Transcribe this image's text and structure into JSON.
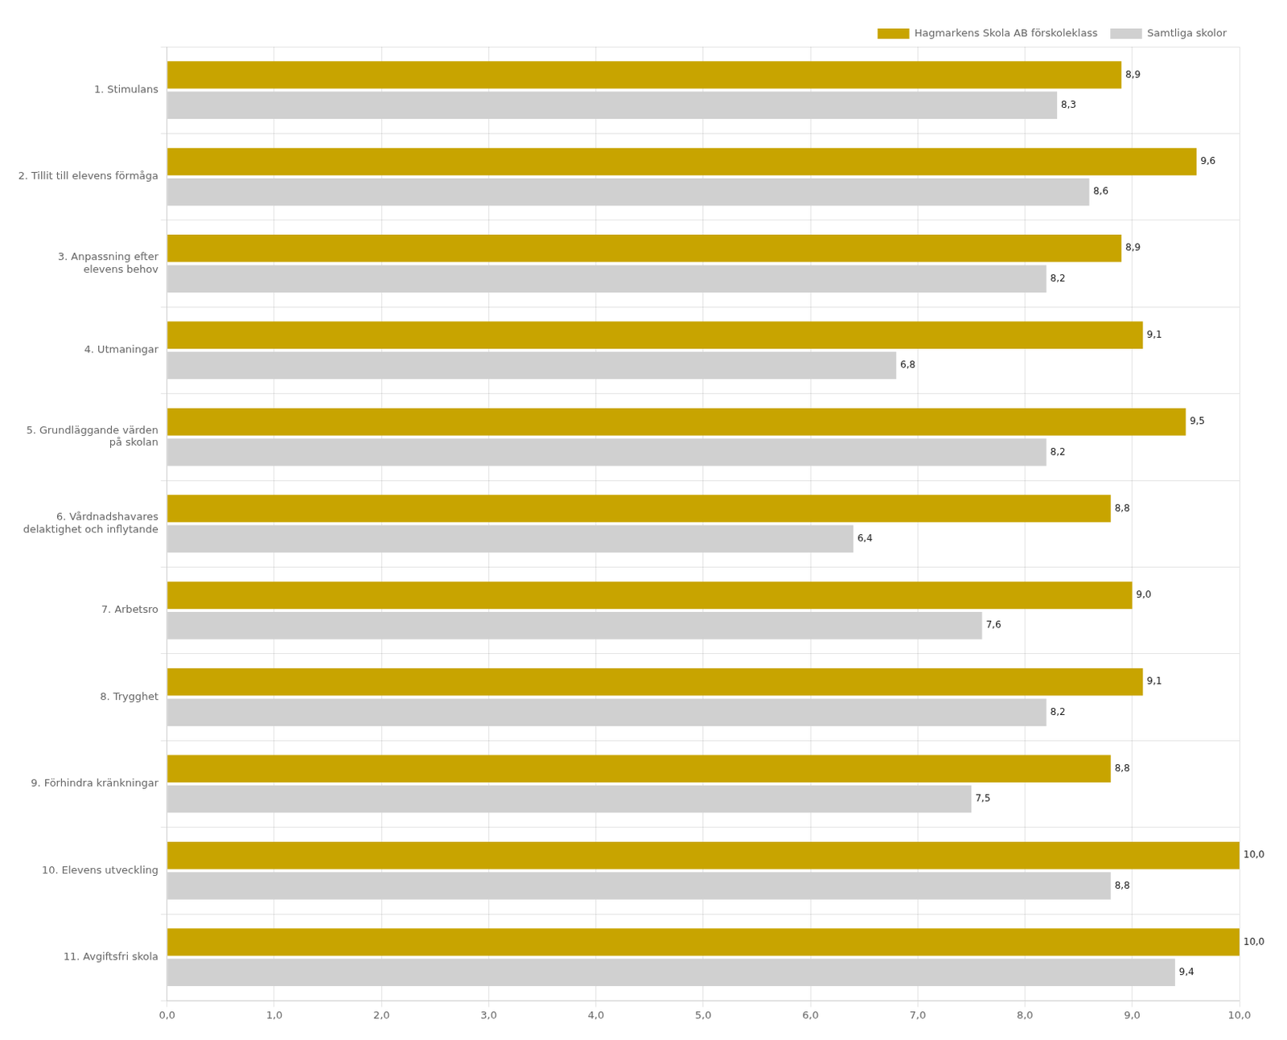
{
  "chart_data": {
    "type": "bar",
    "orientation": "horizontal",
    "categories": [
      "1. Stimulans",
      "2. Tillit till elevens förmåga",
      "3. Anpassning efter\nelevens behov",
      "4. Utmaningar",
      "5. Grundläggande värden\npå skolan",
      "6. Vårdnadshavares\ndelaktighet och inflytande",
      "7. Arbetsro",
      "8. Trygghet",
      "9. Förhindra kränkningar",
      "10. Elevens utveckling",
      "11. Avgiftsfri skola"
    ],
    "series": [
      {
        "name": "Hagmarkens Skola AB förskoleklass",
        "color": "#C8A400",
        "values": [
          8.9,
          9.6,
          8.9,
          9.1,
          9.5,
          8.8,
          9.0,
          9.1,
          8.8,
          10.0,
          10.0
        ],
        "value_labels": [
          "8,9",
          "9,6",
          "8,9",
          "9,1",
          "9,5",
          "8,8",
          "9,0",
          "9,1",
          "8,8",
          "10,0",
          "10,0"
        ]
      },
      {
        "name": "Samtliga skolor",
        "color": "#D0D0D0",
        "values": [
          8.3,
          8.6,
          8.2,
          6.8,
          8.2,
          6.4,
          7.6,
          8.2,
          7.5,
          8.8,
          9.4
        ],
        "value_labels": [
          "8,3",
          "8,6",
          "8,2",
          "6,8",
          "8,2",
          "6,4",
          "7,6",
          "8,2",
          "7,5",
          "8,8",
          "9,4"
        ]
      }
    ],
    "xlim": [
      0,
      10
    ],
    "xticks": [
      {
        "value": 0,
        "label": "0,0"
      },
      {
        "value": 1,
        "label": "1,0"
      },
      {
        "value": 2,
        "label": "2,0"
      },
      {
        "value": 3,
        "label": "3,0"
      },
      {
        "value": 4,
        "label": "4,0"
      },
      {
        "value": 5,
        "label": "5,0"
      },
      {
        "value": 6,
        "label": "6,0"
      },
      {
        "value": 7,
        "label": "7,0"
      },
      {
        "value": 8,
        "label": "8,0"
      },
      {
        "value": 9,
        "label": "9,0"
      },
      {
        "value": 10,
        "label": "10,0"
      }
    ],
    "grid": true,
    "legend": "upper right",
    "data_labels": true
  }
}
